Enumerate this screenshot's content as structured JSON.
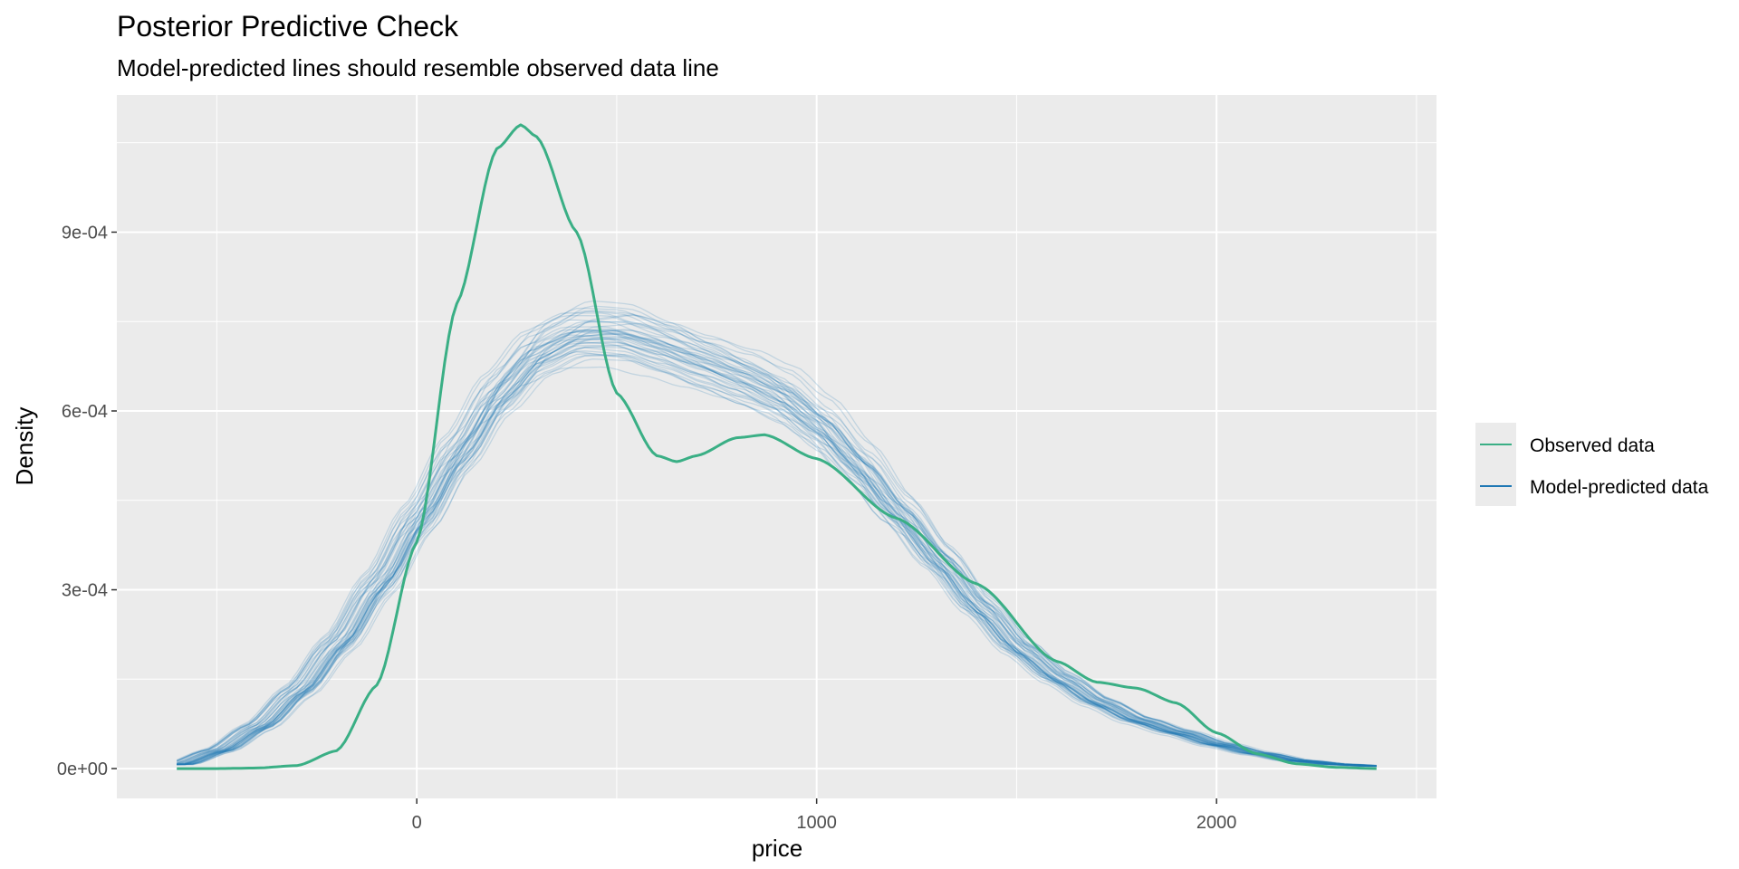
{
  "chart_data": {
    "type": "line",
    "title": "Posterior Predictive Check",
    "subtitle": "Model-predicted lines should resemble observed data line",
    "xlabel": "price",
    "ylabel": "Density",
    "xlim": [
      -750,
      2550
    ],
    "ylim": [
      -5e-05,
      0.00113
    ],
    "x_ticks": [
      0,
      1000,
      2000
    ],
    "x_tick_labels": [
      "0",
      "1000",
      "2000"
    ],
    "y_ticks": [
      0,
      0.0003,
      0.0006,
      0.0009
    ],
    "y_tick_labels": [
      "0e+00",
      "3e-04",
      "6e-04",
      "9e-04"
    ],
    "grid": true,
    "legend_position": "right",
    "colors": {
      "observed": "#3aaf85",
      "predicted": "#1f78b4",
      "panel": "#ebebeb",
      "grid": "#ffffff"
    },
    "series": [
      {
        "name": "Observed data",
        "role": "observed",
        "x": [
          -600,
          -500,
          -400,
          -300,
          -200,
          -100,
          0,
          100,
          200,
          260,
          300,
          400,
          500,
          600,
          650,
          700,
          800,
          870,
          1000,
          1200,
          1400,
          1600,
          1700,
          1800,
          1900,
          2000,
          2100,
          2200,
          2300,
          2400
        ],
        "y": [
          0.0,
          0.0,
          1e-06,
          5e-06,
          3e-05,
          0.00014,
          0.00038,
          0.00078,
          0.00104,
          0.00108,
          0.00106,
          0.0009,
          0.00063,
          0.000525,
          0.000515,
          0.000525,
          0.000555,
          0.00056,
          0.00052,
          0.00042,
          0.00031,
          0.00018,
          0.000145,
          0.000135,
          0.00011,
          6e-05,
          2.5e-05,
          8e-06,
          2e-06,
          0.0
        ]
      },
      {
        "name": "Model-predicted data",
        "role": "predicted",
        "draws": 45,
        "x": [
          -600,
          -500,
          -400,
          -300,
          -200,
          -100,
          0,
          100,
          200,
          300,
          400,
          500,
          600,
          700,
          800,
          900,
          1000,
          1100,
          1200,
          1300,
          1400,
          1500,
          1600,
          1700,
          1800,
          1900,
          2000,
          2100,
          2200,
          2300,
          2400
        ],
        "y": [
          7e-06,
          3e-05,
          7e-05,
          0.00013,
          0.00021,
          0.00031,
          0.00042,
          0.00053,
          0.00063,
          0.0007,
          0.00073,
          0.00073,
          0.00071,
          0.000685,
          0.00066,
          0.00063,
          0.00058,
          0.00051,
          0.00043,
          0.00035,
          0.00027,
          0.0002,
          0.00015,
          0.00011,
          8e-05,
          6e-05,
          4e-05,
          2.5e-05,
          1.3e-05,
          7e-06,
          4e-06
        ]
      }
    ]
  }
}
